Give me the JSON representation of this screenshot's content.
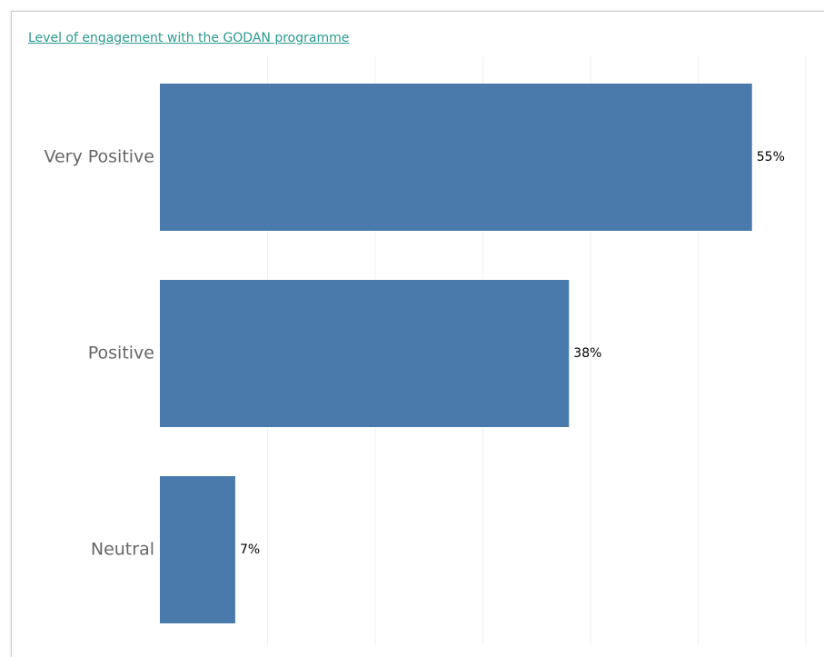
{
  "chart_data": {
    "type": "bar",
    "orientation": "horizontal",
    "title": "Level of engagement with the GODAN programme",
    "categories": [
      "Very Positive",
      "Positive",
      "Neutral"
    ],
    "values": [
      55,
      38,
      7
    ],
    "value_labels": [
      "55%",
      "38%",
      "7%"
    ],
    "xlim": [
      0,
      60
    ],
    "grid": true,
    "bar_color": "#4a7aab"
  }
}
